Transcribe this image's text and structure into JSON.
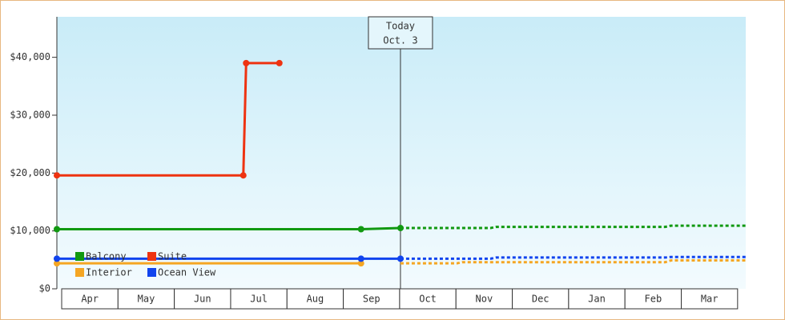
{
  "chart_data": {
    "type": "line",
    "categories": [
      "Apr",
      "May",
      "Jun",
      "Jul",
      "Aug",
      "Sep",
      "Oct",
      "Nov",
      "Dec",
      "Jan",
      "Feb",
      "Mar"
    ],
    "xlim": [
      0,
      12.23
    ],
    "ylim": [
      0,
      47000
    ],
    "yticks": [
      {
        "value": 0,
        "label": "$0"
      },
      {
        "value": 10000,
        "label": "$10,000"
      },
      {
        "value": 20000,
        "label": "$20,000"
      },
      {
        "value": 30000,
        "label": "$30,000"
      },
      {
        "value": 40000,
        "label": "$40,000"
      }
    ],
    "today": {
      "label": [
        "Today",
        "Oct. 3"
      ],
      "x": 6.1
    },
    "series": [
      {
        "name": "Balcony",
        "color": "#119911",
        "x": [
          0,
          5.4,
          6.1
        ],
        "values": [
          10300,
          10300,
          10500
        ],
        "forecast_x": [
          6.1,
          7.7,
          7.8,
          10.8,
          10.9,
          12.23
        ],
        "forecast_values": [
          10500,
          10500,
          10700,
          10700,
          10900,
          10900
        ]
      },
      {
        "name": "Suite",
        "color": "#ee3311",
        "x": [
          0,
          3.31,
          3.36,
          3.95
        ],
        "values": [
          19600,
          19600,
          39000,
          39000
        ],
        "forecast_x": [],
        "forecast_values": []
      },
      {
        "name": "Interior",
        "color": "#f5a623",
        "x": [
          0,
          5.4
        ],
        "values": [
          4400,
          4400
        ],
        "forecast_x": [
          6.1,
          7.1,
          7.2,
          10.8,
          10.9,
          12.23
        ],
        "forecast_values": [
          4400,
          4400,
          4600,
          4600,
          4900,
          4900
        ]
      },
      {
        "name": "Ocean View",
        "color": "#1144ee",
        "x": [
          0,
          5.4,
          6.1
        ],
        "values": [
          5200,
          5200,
          5200
        ],
        "forecast_x": [
          6.1,
          7.7,
          7.8,
          10.8,
          10.9,
          12.23
        ],
        "forecast_values": [
          5200,
          5200,
          5400,
          5400,
          5500,
          5500
        ]
      }
    ]
  }
}
